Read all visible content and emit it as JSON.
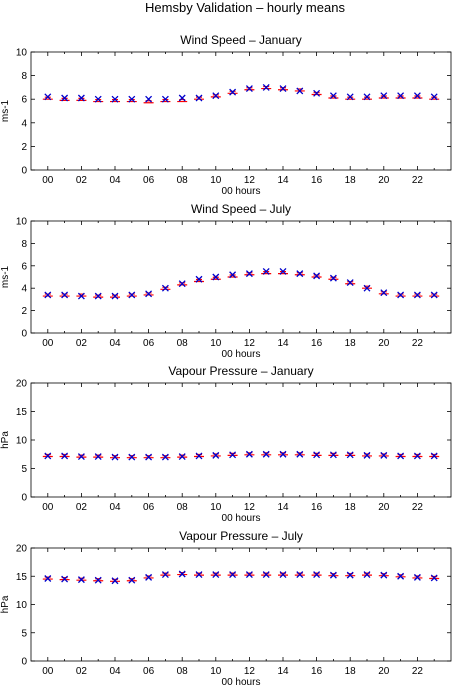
{
  "figure_title": "Hemsby Validation – hourly means",
  "colors": {
    "observed": "#ff0000",
    "model": "#0000cc",
    "axis": "#000000"
  },
  "chart_data": [
    {
      "type": "scatter",
      "title": "Wind Speed – January",
      "xlabel": "00 hours",
      "ylabel": "ms-1",
      "xlim": [
        -1,
        24
      ],
      "ylim": [
        0,
        10
      ],
      "xticks": [
        "00",
        "02",
        "04",
        "06",
        "08",
        "10",
        "12",
        "14",
        "16",
        "18",
        "20",
        "22"
      ],
      "yticks": [
        "0",
        "2",
        "4",
        "6",
        "8",
        "10"
      ],
      "x": [
        0,
        1,
        2,
        3,
        4,
        5,
        6,
        7,
        8,
        9,
        10,
        11,
        12,
        13,
        14,
        15,
        16,
        17,
        18,
        19,
        20,
        21,
        22,
        23
      ],
      "series": [
        {
          "values": [
            6.0,
            5.9,
            5.9,
            5.8,
            5.8,
            5.8,
            5.7,
            5.8,
            5.8,
            6.0,
            6.2,
            6.5,
            6.8,
            6.9,
            6.8,
            6.7,
            6.4,
            6.1,
            6.0,
            6.0,
            6.1,
            6.1,
            6.1,
            6.0
          ]
        },
        {
          "values": [
            6.2,
            6.1,
            6.1,
            6.0,
            6.0,
            6.0,
            6.0,
            6.0,
            6.1,
            6.1,
            6.3,
            6.6,
            6.9,
            7.0,
            6.9,
            6.7,
            6.5,
            6.3,
            6.2,
            6.2,
            6.3,
            6.3,
            6.3,
            6.2
          ]
        }
      ]
    },
    {
      "type": "scatter",
      "title": "Wind Speed – July",
      "xlabel": "00 hours",
      "ylabel": "ms-1",
      "xlim": [
        -1,
        24
      ],
      "ylim": [
        0,
        10
      ],
      "xticks": [
        "00",
        "02",
        "04",
        "06",
        "08",
        "10",
        "12",
        "14",
        "16",
        "18",
        "20",
        "22"
      ],
      "yticks": [
        "0",
        "2",
        "4",
        "6",
        "8",
        "10"
      ],
      "x": [
        0,
        1,
        2,
        3,
        4,
        5,
        6,
        7,
        8,
        9,
        10,
        11,
        12,
        13,
        14,
        15,
        16,
        17,
        18,
        19,
        20,
        21,
        22,
        23
      ],
      "series": [
        {
          "values": [
            3.3,
            3.3,
            3.3,
            3.2,
            3.2,
            3.3,
            3.4,
            3.9,
            4.3,
            4.6,
            4.8,
            5.0,
            5.2,
            5.3,
            5.3,
            5.2,
            5.0,
            4.8,
            4.4,
            4.0,
            3.5,
            3.3,
            3.3,
            3.3
          ]
        },
        {
          "values": [
            3.4,
            3.4,
            3.3,
            3.3,
            3.3,
            3.4,
            3.5,
            4.0,
            4.4,
            4.8,
            5.0,
            5.2,
            5.3,
            5.5,
            5.5,
            5.3,
            5.1,
            4.9,
            4.5,
            4.0,
            3.6,
            3.4,
            3.4,
            3.4
          ]
        }
      ]
    },
    {
      "type": "scatter",
      "title": "Vapour Pressure – January",
      "xlabel": "00 hours",
      "ylabel": "hPa",
      "xlim": [
        -1,
        24
      ],
      "ylim": [
        0,
        20
      ],
      "xticks": [
        "00",
        "02",
        "04",
        "06",
        "08",
        "10",
        "12",
        "14",
        "16",
        "18",
        "20",
        "22"
      ],
      "yticks": [
        "0",
        "5",
        "10",
        "15",
        "20"
      ],
      "x": [
        0,
        1,
        2,
        3,
        4,
        5,
        6,
        7,
        8,
        9,
        10,
        11,
        12,
        13,
        14,
        15,
        16,
        17,
        18,
        19,
        20,
        21,
        22,
        23
      ],
      "series": [
        {
          "values": [
            7.1,
            7.1,
            7.0,
            7.0,
            6.9,
            6.9,
            6.9,
            6.9,
            7.0,
            7.1,
            7.2,
            7.3,
            7.4,
            7.4,
            7.4,
            7.4,
            7.3,
            7.3,
            7.3,
            7.2,
            7.2,
            7.1,
            7.1,
            7.1
          ]
        },
        {
          "values": [
            7.2,
            7.2,
            7.1,
            7.1,
            7.0,
            7.0,
            7.0,
            7.0,
            7.1,
            7.2,
            7.3,
            7.4,
            7.5,
            7.5,
            7.5,
            7.5,
            7.4,
            7.4,
            7.4,
            7.3,
            7.3,
            7.2,
            7.2,
            7.2
          ]
        }
      ]
    },
    {
      "type": "scatter",
      "title": "Vapour Pressure – July",
      "xlabel": "00 hours",
      "ylabel": "hPa",
      "xlim": [
        -1,
        24
      ],
      "ylim": [
        0,
        20
      ],
      "xticks": [
        "00",
        "02",
        "04",
        "06",
        "08",
        "10",
        "12",
        "14",
        "16",
        "18",
        "20",
        "22"
      ],
      "yticks": [
        "0",
        "5",
        "10",
        "15",
        "20"
      ],
      "x": [
        0,
        1,
        2,
        3,
        4,
        5,
        6,
        7,
        8,
        9,
        10,
        11,
        12,
        13,
        14,
        15,
        16,
        17,
        18,
        19,
        20,
        21,
        22,
        23
      ],
      "series": [
        {
          "values": [
            14.5,
            14.4,
            14.3,
            14.2,
            14.1,
            14.2,
            14.7,
            15.2,
            15.3,
            15.2,
            15.2,
            15.2,
            15.2,
            15.2,
            15.2,
            15.2,
            15.2,
            15.1,
            15.1,
            15.2,
            15.1,
            14.9,
            14.7,
            14.6
          ]
        },
        {
          "values": [
            14.6,
            14.5,
            14.4,
            14.3,
            14.2,
            14.3,
            14.8,
            15.3,
            15.4,
            15.3,
            15.3,
            15.3,
            15.3,
            15.3,
            15.3,
            15.3,
            15.3,
            15.2,
            15.2,
            15.3,
            15.2,
            15.0,
            14.8,
            14.7
          ]
        }
      ]
    }
  ]
}
